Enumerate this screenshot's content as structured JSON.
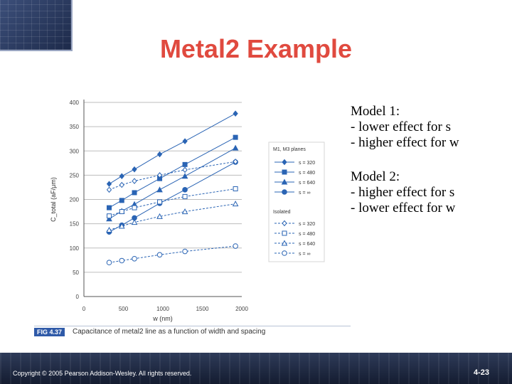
{
  "slide": {
    "title": "Metal2  Example",
    "notes": [
      {
        "heading": "Model 1:",
        "lines": [
          "- lower effect for s",
          "- higher effect for w"
        ]
      },
      {
        "heading": "Model 2:",
        "lines": [
          "- higher effect for s",
          "- lower effect for w"
        ]
      }
    ],
    "caption": {
      "fig": "FIG 4.37",
      "text": "Capacitance of metal2 line as a function of width and spacing"
    },
    "footer": {
      "copyright": "Copyright © 2005 Pearson Addison-Wesley. All rights reserved.",
      "page": "4-23"
    }
  },
  "chart_data": {
    "type": "line",
    "xlabel": "w (nm)",
    "ylabel": "C_total (aF/μm)",
    "xlim": [
      0,
      2000
    ],
    "ylim": [
      0,
      400
    ],
    "xticks": [
      0,
      500,
      1000,
      1500,
      2000
    ],
    "yticks": [
      0,
      50,
      100,
      150,
      200,
      250,
      300,
      350,
      400
    ],
    "grid": true,
    "legend": {
      "position": "right",
      "group1_title": "M1, M3 planes",
      "group2_title": "Isolated"
    },
    "color": "#2a64b4",
    "series": [
      {
        "name": "s = 320",
        "group": "M1, M3 planes",
        "marker": "diamond",
        "filled": true,
        "dashed": false,
        "x": [
          320,
          480,
          640,
          960,
          1280,
          1920
        ],
        "y": [
          232,
          248,
          262,
          293,
          320,
          377
        ]
      },
      {
        "name": "s = 480",
        "group": "M1, M3 planes",
        "marker": "square",
        "filled": true,
        "dashed": false,
        "x": [
          320,
          480,
          640,
          960,
          1280,
          1920
        ],
        "y": [
          183,
          198,
          214,
          243,
          272,
          328
        ]
      },
      {
        "name": "s = 640",
        "group": "M1, M3 planes",
        "marker": "triangle",
        "filled": true,
        "dashed": false,
        "x": [
          320,
          480,
          640,
          960,
          1280,
          1920
        ],
        "y": [
          160,
          176,
          190,
          220,
          248,
          306
        ]
      },
      {
        "name": "s = ∞",
        "group": "M1, M3 planes",
        "marker": "circle",
        "filled": true,
        "dashed": false,
        "x": [
          320,
          480,
          640,
          960,
          1280,
          1920
        ],
        "y": [
          133,
          147,
          162,
          192,
          220,
          277
        ]
      },
      {
        "name": "s = 320",
        "group": "Isolated",
        "marker": "diamond",
        "filled": false,
        "dashed": true,
        "x": [
          320,
          480,
          640,
          960,
          1280,
          1920
        ],
        "y": [
          220,
          230,
          238,
          250,
          261,
          278
        ]
      },
      {
        "name": "s = 480",
        "group": "Isolated",
        "marker": "square",
        "filled": false,
        "dashed": true,
        "x": [
          320,
          480,
          640,
          960,
          1280,
          1920
        ],
        "y": [
          166,
          175,
          183,
          195,
          206,
          222
        ]
      },
      {
        "name": "s = 640",
        "group": "Isolated",
        "marker": "triangle",
        "filled": false,
        "dashed": true,
        "x": [
          320,
          480,
          640,
          960,
          1280,
          1920
        ],
        "y": [
          137,
          145,
          153,
          165,
          175,
          191
        ]
      },
      {
        "name": "s = ∞",
        "group": "Isolated",
        "marker": "circle",
        "filled": false,
        "dashed": true,
        "x": [
          320,
          480,
          640,
          960,
          1280,
          1920
        ],
        "y": [
          70,
          74,
          78,
          86,
          93,
          104
        ]
      }
    ]
  }
}
